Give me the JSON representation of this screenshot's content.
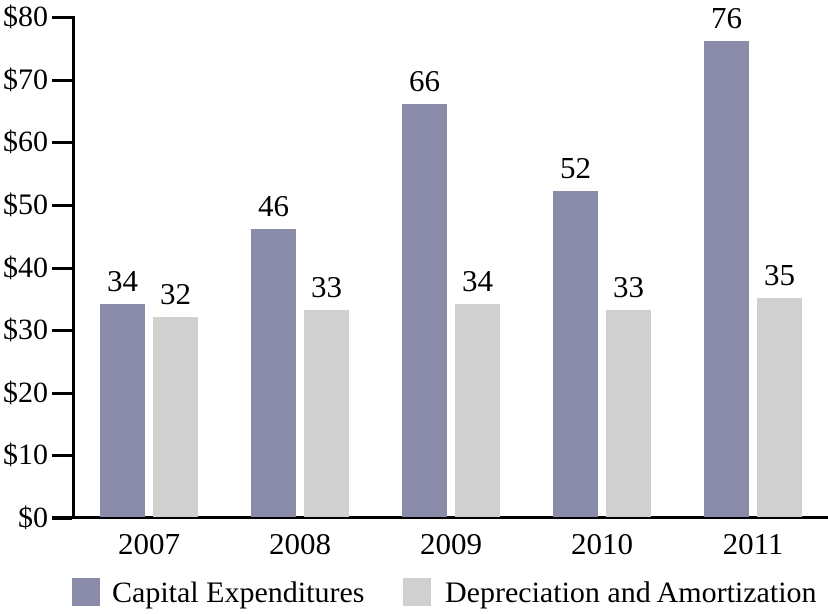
{
  "chart_data": {
    "type": "bar",
    "title": "",
    "xlabel": "",
    "ylabel": "",
    "categories": [
      "2007",
      "2008",
      "2009",
      "2010",
      "2011"
    ],
    "series": [
      {
        "name": "Capital Expenditures",
        "color": "#8A8CA9",
        "values": [
          34,
          46,
          66,
          52,
          76
        ]
      },
      {
        "name": "Depreciation and Amortization",
        "color": "#D0D0D0",
        "values": [
          32,
          33,
          34,
          33,
          35
        ]
      }
    ],
    "ylim": [
      0,
      80
    ],
    "ytick_step": 10,
    "ytick_labels": [
      "$0",
      "$10",
      "$20",
      "$30",
      "$40",
      "$50",
      "$60",
      "$70",
      "$80"
    ],
    "value_labels_shown": true,
    "grid": false,
    "legend_position": "bottom",
    "axis_color": "#000000",
    "text_color": "#000000"
  }
}
